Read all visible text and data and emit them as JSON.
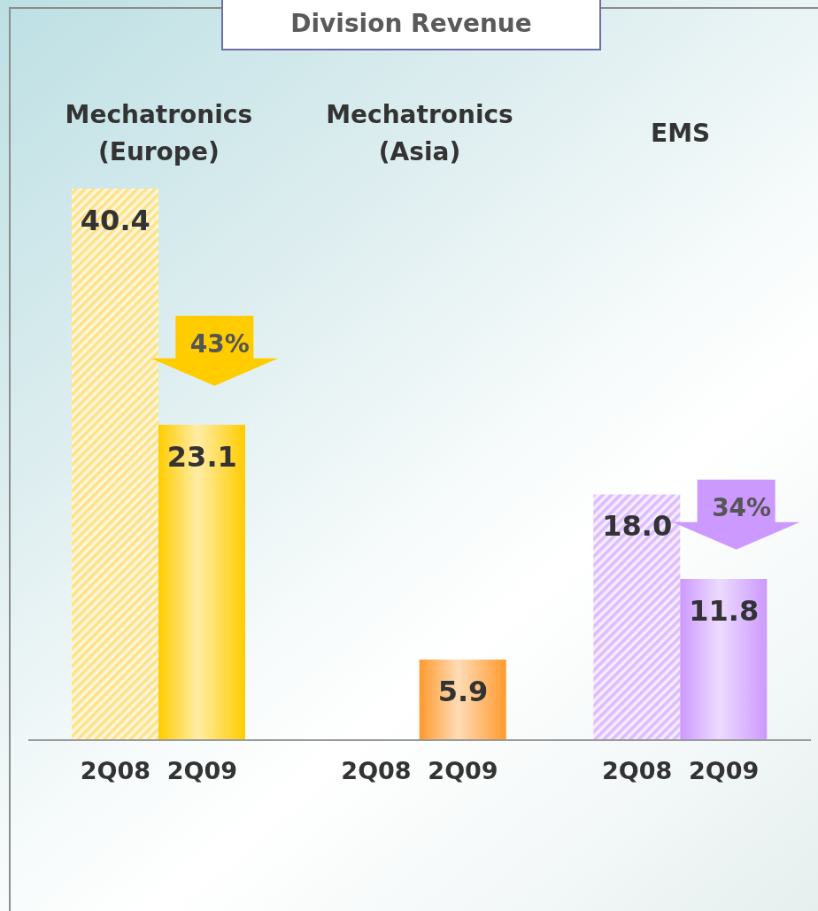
{
  "chart_data": {
    "type": "bar",
    "title": "Division Revenue",
    "categories": [
      "Mechatronics (Europe)",
      "Mechatronics (Asia)",
      "EMS"
    ],
    "series": [
      {
        "name": "2Q08",
        "colors": [
          "#ffe285",
          null,
          "#dcbcff"
        ],
        "values": [
          40.4,
          null,
          18.0
        ],
        "value_labels": [
          "40.4",
          null,
          "18.0"
        ]
      },
      {
        "name": "2Q09",
        "colors": [
          "#ffcc00",
          "#ff9a2e",
          "#cc99ff"
        ],
        "values": [
          23.1,
          5.9,
          11.8
        ],
        "value_labels": [
          "23.1",
          "5.9",
          "11.8"
        ]
      }
    ],
    "annotations": [
      {
        "text": "43%",
        "x": "Mechatronics (Europe)",
        "y": 29
      },
      {
        "text": "34%",
        "x": "EMS",
        "y": 17
      }
    ]
  }
}
